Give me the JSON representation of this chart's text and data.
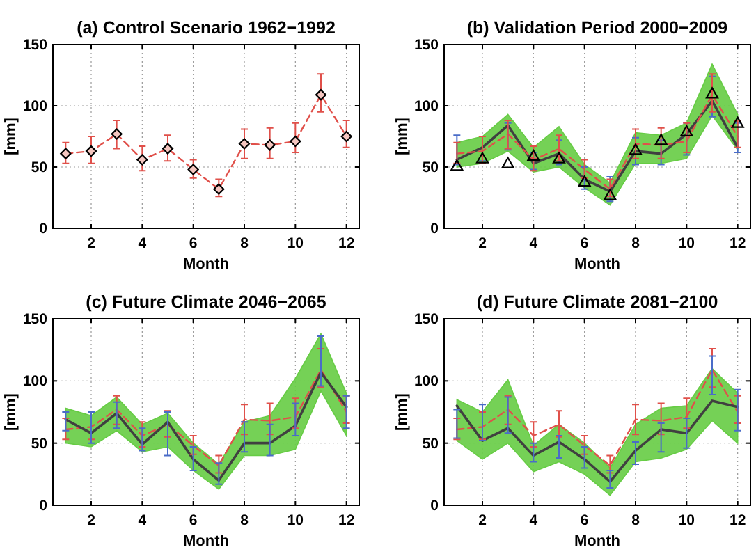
{
  "chart_data": [
    {
      "type": "line",
      "title": "(a) Control Scenario 1962−1992",
      "xlabel": "Month",
      "ylabel": "[mm]",
      "x": [
        1,
        2,
        3,
        4,
        5,
        6,
        7,
        8,
        9,
        10,
        11,
        12
      ],
      "xlim": [
        0.5,
        12.5
      ],
      "xticks": [
        2,
        4,
        6,
        8,
        10,
        12
      ],
      "ylim": [
        0,
        150
      ],
      "yticks": [
        0,
        50,
        100,
        150
      ],
      "grid": true,
      "series": [
        {
          "color": "#e0504a",
          "line_style": "dashed",
          "marker": "diamond",
          "values": [
            61,
            63,
            77,
            56,
            65,
            48,
            32,
            69,
            68,
            71,
            109,
            75
          ],
          "errors": [
            [
              53,
              70
            ],
            [
              53,
              75
            ],
            [
              65,
              88
            ],
            [
              47,
              67
            ],
            [
              55,
              76
            ],
            [
              41,
              56
            ],
            [
              26,
              40
            ],
            [
              57,
              81
            ],
            [
              57,
              82
            ],
            [
              62,
              86
            ],
            [
              95,
              126
            ],
            [
              66,
              88
            ]
          ]
        }
      ]
    },
    {
      "type": "line",
      "title": "(b) Validation Period 2000−2009",
      "xlabel": "Month",
      "ylabel": "[mm]",
      "x": [
        1,
        2,
        3,
        4,
        5,
        6,
        7,
        8,
        9,
        10,
        11,
        12
      ],
      "xlim": [
        0.5,
        12.5
      ],
      "xticks": [
        2,
        4,
        6,
        8,
        10,
        12
      ],
      "ylim": [
        0,
        150
      ],
      "yticks": [
        0,
        50,
        100,
        150
      ],
      "grid": true,
      "series": [
        {
          "color": "#404040",
          "line_style": "solid",
          "marker": "none",
          "values": [
            56,
            66,
            84,
            53,
            61,
            40,
            30,
            63,
            61,
            77,
            104,
            66
          ],
          "lower": [
            50,
            53,
            63,
            46,
            50,
            33,
            19,
            53,
            53,
            57,
            92,
            64
          ],
          "upper": [
            70,
            75,
            93,
            66,
            83,
            52,
            37,
            78,
            76,
            86,
            134,
            93
          ],
          "errors": [
            [
              52,
              76
            ],
            [
              55,
              75
            ],
            [
              64,
              86
            ],
            [
              48,
              62
            ],
            [
              52,
              72
            ],
            [
              32,
              50
            ],
            [
              22,
              42
            ],
            [
              52,
              74
            ],
            [
              52,
              72
            ],
            [
              60,
              86
            ],
            [
              91,
              124
            ],
            [
              62,
              86
            ]
          ]
        },
        {
          "color": "#e0504a",
          "line_style": "dashed",
          "marker": "none",
          "values": [
            61,
            63,
            77,
            56,
            65,
            48,
            32,
            69,
            68,
            71,
            109,
            75
          ],
          "errors": [
            [
              53,
              70
            ],
            [
              53,
              75
            ],
            [
              65,
              88
            ],
            [
              47,
              67
            ],
            [
              55,
              76
            ],
            [
              41,
              56
            ],
            [
              26,
              40
            ],
            [
              57,
              81
            ],
            [
              57,
              82
            ],
            [
              62,
              86
            ],
            [
              95,
              126
            ],
            [
              66,
              88
            ]
          ]
        },
        {
          "type": "scatter",
          "color": "#000000",
          "marker": "triangle",
          "values": [
            51,
            57,
            53,
            59,
            57,
            38,
            27,
            64,
            72,
            79,
            110,
            86
          ]
        }
      ]
    },
    {
      "type": "line",
      "title": "(c) Future Climate 2046−2065",
      "xlabel": "Month",
      "ylabel": "[mm]",
      "x": [
        1,
        2,
        3,
        4,
        5,
        6,
        7,
        8,
        9,
        10,
        11,
        12
      ],
      "xlim": [
        0.5,
        12.5
      ],
      "xticks": [
        2,
        4,
        6,
        8,
        10,
        12
      ],
      "ylim": [
        0,
        150
      ],
      "yticks": [
        0,
        50,
        100,
        150
      ],
      "grid": true,
      "series": [
        {
          "color": "#e0504a",
          "line_style": "dashed",
          "marker": "none",
          "values": [
            61,
            63,
            77,
            56,
            65,
            48,
            32,
            69,
            68,
            71,
            109,
            75
          ],
          "errors": [
            [
              53,
              70
            ],
            [
              53,
              75
            ],
            [
              65,
              88
            ],
            [
              47,
              67
            ],
            [
              55,
              76
            ],
            [
              41,
              56
            ],
            [
              26,
              40
            ],
            [
              57,
              81
            ],
            [
              57,
              82
            ],
            [
              62,
              86
            ],
            [
              95,
              126
            ],
            [
              66,
              88
            ]
          ]
        },
        {
          "color": "#404040",
          "line_style": "solid",
          "marker": "none",
          "values": [
            69,
            58,
            74,
            49,
            67,
            37,
            20,
            50,
            50,
            64,
            107,
            79
          ],
          "lower": [
            50,
            47,
            60,
            43,
            47,
            28,
            13,
            40,
            40,
            45,
            92,
            56
          ],
          "upper": [
            78,
            72,
            87,
            65,
            74,
            50,
            33,
            67,
            72,
            102,
            138,
            90
          ],
          "errors": [
            [
              60,
              75
            ],
            [
              50,
              75
            ],
            [
              62,
              83
            ],
            [
              44,
              62
            ],
            [
              40,
              75
            ],
            [
              28,
              47
            ],
            [
              17,
              34
            ],
            [
              43,
              67
            ],
            [
              40,
              65
            ],
            [
              56,
              82
            ],
            [
              96,
              136
            ],
            [
              62,
              88
            ]
          ]
        }
      ]
    },
    {
      "type": "line",
      "title": "(d) Future Climate 2081−2100",
      "xlabel": "Month",
      "ylabel": "[mm]",
      "x": [
        1,
        2,
        3,
        4,
        5,
        6,
        7,
        8,
        9,
        10,
        11,
        12
      ],
      "xlim": [
        0.5,
        12.5
      ],
      "xticks": [
        2,
        4,
        6,
        8,
        10,
        12
      ],
      "ylim": [
        0,
        150
      ],
      "yticks": [
        0,
        50,
        100,
        150
      ],
      "grid": true,
      "series": [
        {
          "color": "#e0504a",
          "line_style": "dashed",
          "marker": "none",
          "values": [
            61,
            63,
            77,
            56,
            65,
            48,
            32,
            69,
            68,
            71,
            109,
            75
          ],
          "errors": [
            [
              53,
              70
            ],
            [
              53,
              75
            ],
            [
              65,
              88
            ],
            [
              47,
              67
            ],
            [
              55,
              76
            ],
            [
              41,
              56
            ],
            [
              26,
              40
            ],
            [
              57,
              81
            ],
            [
              57,
              82
            ],
            [
              62,
              86
            ],
            [
              95,
              126
            ],
            [
              66,
              88
            ]
          ]
        },
        {
          "color": "#404040",
          "line_style": "solid",
          "marker": "none",
          "values": [
            80,
            52,
            62,
            40,
            51,
            37,
            19,
            44,
            61,
            58,
            84,
            79
          ],
          "lower": [
            52,
            37,
            50,
            27,
            35,
            25,
            8,
            35,
            38,
            45,
            68,
            50
          ],
          "upper": [
            85,
            75,
            101,
            48,
            65,
            50,
            30,
            65,
            78,
            80,
            110,
            90
          ],
          "errors": [
            [
              54,
              77
            ],
            [
              52,
              81
            ],
            [
              58,
              87
            ],
            [
              35,
              50
            ],
            [
              38,
              56
            ],
            [
              30,
              47
            ],
            [
              14,
              28
            ],
            [
              33,
              51
            ],
            [
              43,
              66
            ],
            [
              46,
              70
            ],
            [
              89,
              120
            ],
            [
              60,
              93
            ]
          ]
        }
      ]
    }
  ]
}
